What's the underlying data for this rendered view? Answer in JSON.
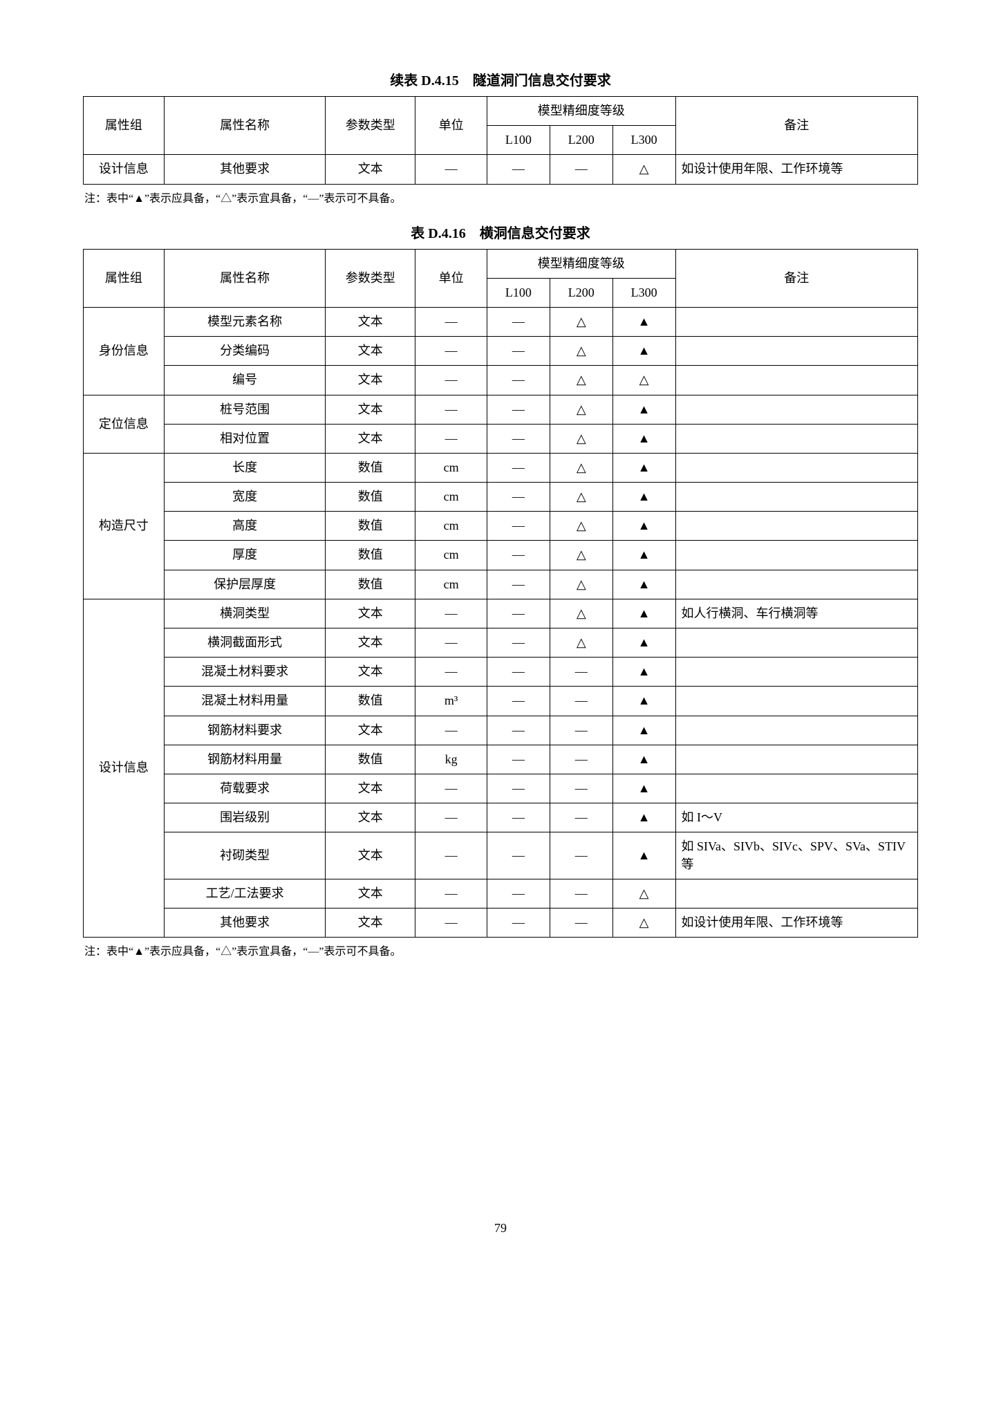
{
  "table1": {
    "caption": "续表 D.4.15　隧道洞门信息交付要求",
    "headers": {
      "group": "属性组",
      "name": "属性名称",
      "ptype": "参数类型",
      "unit": "单位",
      "level_group": "模型精细度等级",
      "l100": "L100",
      "l200": "L200",
      "l300": "L300",
      "note": "备注"
    },
    "rows": [
      {
        "group": "设计信息",
        "name": "其他要求",
        "ptype": "文本",
        "unit": "—",
        "l100": "—",
        "l200": "—",
        "l300": "△",
        "note": "如设计使用年限、工作环境等"
      }
    ],
    "footnote": "注：表中“▲”表示应具备，“△”表示宜具备，“—”表示可不具备。"
  },
  "table2": {
    "caption": "表 D.4.16　横洞信息交付要求",
    "headers": {
      "group": "属性组",
      "name": "属性名称",
      "ptype": "参数类型",
      "unit": "单位",
      "level_group": "模型精细度等级",
      "l100": "L100",
      "l200": "L200",
      "l300": "L300",
      "note": "备注"
    },
    "groups": [
      {
        "group": "身份信息",
        "rows": [
          {
            "name": "模型元素名称",
            "ptype": "文本",
            "unit": "—",
            "l100": "—",
            "l200": "△",
            "l300": "▲",
            "note": ""
          },
          {
            "name": "分类编码",
            "ptype": "文本",
            "unit": "—",
            "l100": "—",
            "l200": "△",
            "l300": "▲",
            "note": ""
          },
          {
            "name": "编号",
            "ptype": "文本",
            "unit": "—",
            "l100": "—",
            "l200": "△",
            "l300": "△",
            "note": ""
          }
        ]
      },
      {
        "group": "定位信息",
        "rows": [
          {
            "name": "桩号范围",
            "ptype": "文本",
            "unit": "—",
            "l100": "—",
            "l200": "△",
            "l300": "▲",
            "note": ""
          },
          {
            "name": "相对位置",
            "ptype": "文本",
            "unit": "—",
            "l100": "—",
            "l200": "△",
            "l300": "▲",
            "note": ""
          }
        ]
      },
      {
        "group": "构造尺寸",
        "rows": [
          {
            "name": "长度",
            "ptype": "数值",
            "unit": "cm",
            "l100": "—",
            "l200": "△",
            "l300": "▲",
            "note": ""
          },
          {
            "name": "宽度",
            "ptype": "数值",
            "unit": "cm",
            "l100": "—",
            "l200": "△",
            "l300": "▲",
            "note": ""
          },
          {
            "name": "高度",
            "ptype": "数值",
            "unit": "cm",
            "l100": "—",
            "l200": "△",
            "l300": "▲",
            "note": ""
          },
          {
            "name": "厚度",
            "ptype": "数值",
            "unit": "cm",
            "l100": "—",
            "l200": "△",
            "l300": "▲",
            "note": ""
          },
          {
            "name": "保护层厚度",
            "ptype": "数值",
            "unit": "cm",
            "l100": "—",
            "l200": "△",
            "l300": "▲",
            "note": ""
          }
        ]
      },
      {
        "group": "设计信息",
        "rows": [
          {
            "name": "横洞类型",
            "ptype": "文本",
            "unit": "—",
            "l100": "—",
            "l200": "△",
            "l300": "▲",
            "note": "如人行横洞、车行横洞等"
          },
          {
            "name": "横洞截面形式",
            "ptype": "文本",
            "unit": "—",
            "l100": "—",
            "l200": "△",
            "l300": "▲",
            "note": ""
          },
          {
            "name": "混凝土材料要求",
            "ptype": "文本",
            "unit": "—",
            "l100": "—",
            "l200": "—",
            "l300": "▲",
            "note": ""
          },
          {
            "name": "混凝土材料用量",
            "ptype": "数值",
            "unit": "m³",
            "l100": "—",
            "l200": "—",
            "l300": "▲",
            "note": ""
          },
          {
            "name": "钢筋材料要求",
            "ptype": "文本",
            "unit": "—",
            "l100": "—",
            "l200": "—",
            "l300": "▲",
            "note": ""
          },
          {
            "name": "钢筋材料用量",
            "ptype": "数值",
            "unit": "kg",
            "l100": "—",
            "l200": "—",
            "l300": "▲",
            "note": ""
          },
          {
            "name": "荷载要求",
            "ptype": "文本",
            "unit": "—",
            "l100": "—",
            "l200": "—",
            "l300": "▲",
            "note": ""
          },
          {
            "name": "围岩级别",
            "ptype": "文本",
            "unit": "—",
            "l100": "—",
            "l200": "—",
            "l300": "▲",
            "note": "如 I～V"
          },
          {
            "name": "衬砌类型",
            "ptype": "文本",
            "unit": "—",
            "l100": "—",
            "l200": "—",
            "l300": "▲",
            "note": "如 SIVa、SIVb、SIVc、SPV、SVa、STIV 等"
          },
          {
            "name": "工艺/工法要求",
            "ptype": "文本",
            "unit": "—",
            "l100": "—",
            "l200": "—",
            "l300": "△",
            "note": ""
          },
          {
            "name": "其他要求",
            "ptype": "文本",
            "unit": "—",
            "l100": "—",
            "l200": "—",
            "l300": "△",
            "note": "如设计使用年限、工作环境等"
          }
        ]
      }
    ],
    "footnote": "注：表中“▲”表示应具备，“△”表示宜具备，“—”表示可不具备。"
  },
  "page_number": "79"
}
